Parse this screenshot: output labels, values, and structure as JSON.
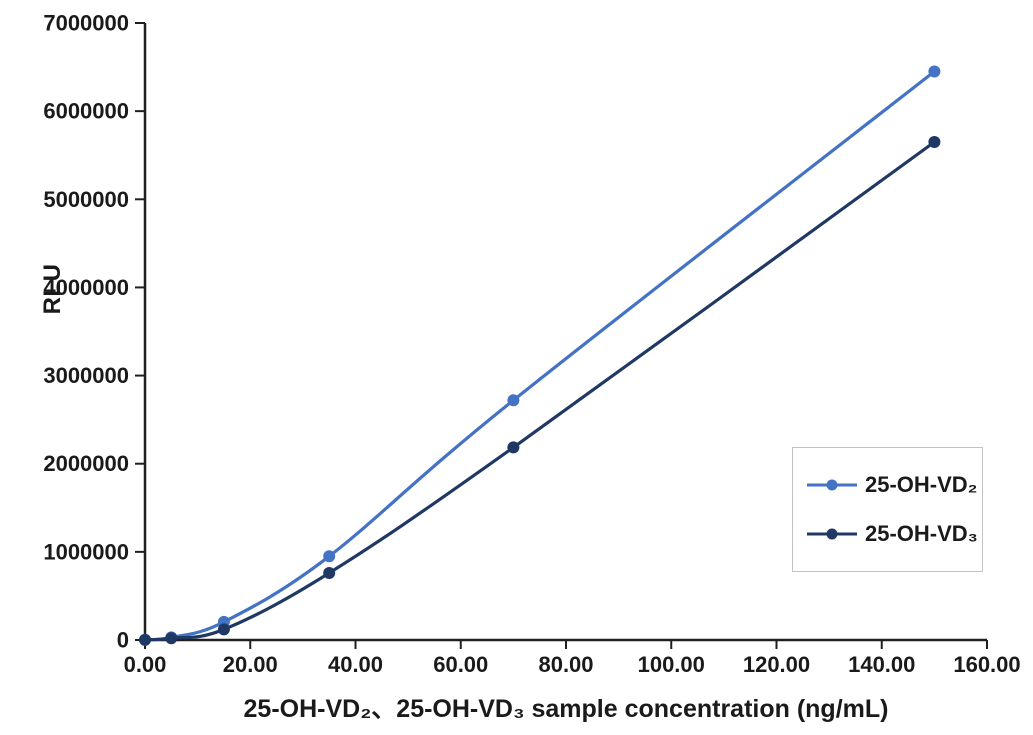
{
  "chart_data": {
    "type": "line",
    "title": "",
    "xlabel": "25-OH-VD₂、25-OH-VD₃ sample concentration (ng/mL)",
    "ylabel": "RLU",
    "x": [
      0,
      5,
      15,
      35,
      70,
      150
    ],
    "series": [
      {
        "name": "25-OH-VD₂",
        "color": "#4472C4",
        "values": [
          2000,
          30000,
          205000,
          950000,
          2720000,
          6450000
        ]
      },
      {
        "name": "25-OH-VD₃",
        "color": "#203864",
        "values": [
          1500,
          20000,
          120000,
          760000,
          2185000,
          5650000
        ]
      }
    ],
    "xlim": [
      0,
      160
    ],
    "ylim": [
      0,
      7000000
    ],
    "x_tick_values": [
      0,
      20,
      40,
      60,
      80,
      100,
      120,
      140,
      160
    ],
    "x_tick_labels": [
      "0.00",
      "20.00",
      "40.00",
      "60.00",
      "80.00",
      "100.00",
      "120.00",
      "140.00",
      "160.00"
    ],
    "y_tick_values": [
      0,
      1000000,
      2000000,
      3000000,
      4000000,
      5000000,
      6000000,
      7000000
    ],
    "y_tick_labels": [
      "0",
      "1000000",
      "2000000",
      "3000000",
      "4000000",
      "5000000",
      "6000000",
      "7000000"
    ],
    "grid": false,
    "smooth": true,
    "legend_position": "right-middle",
    "axis_color": "#1f1f1f",
    "text_color": "#1a1a1a",
    "background_color": "#ffffff"
  }
}
